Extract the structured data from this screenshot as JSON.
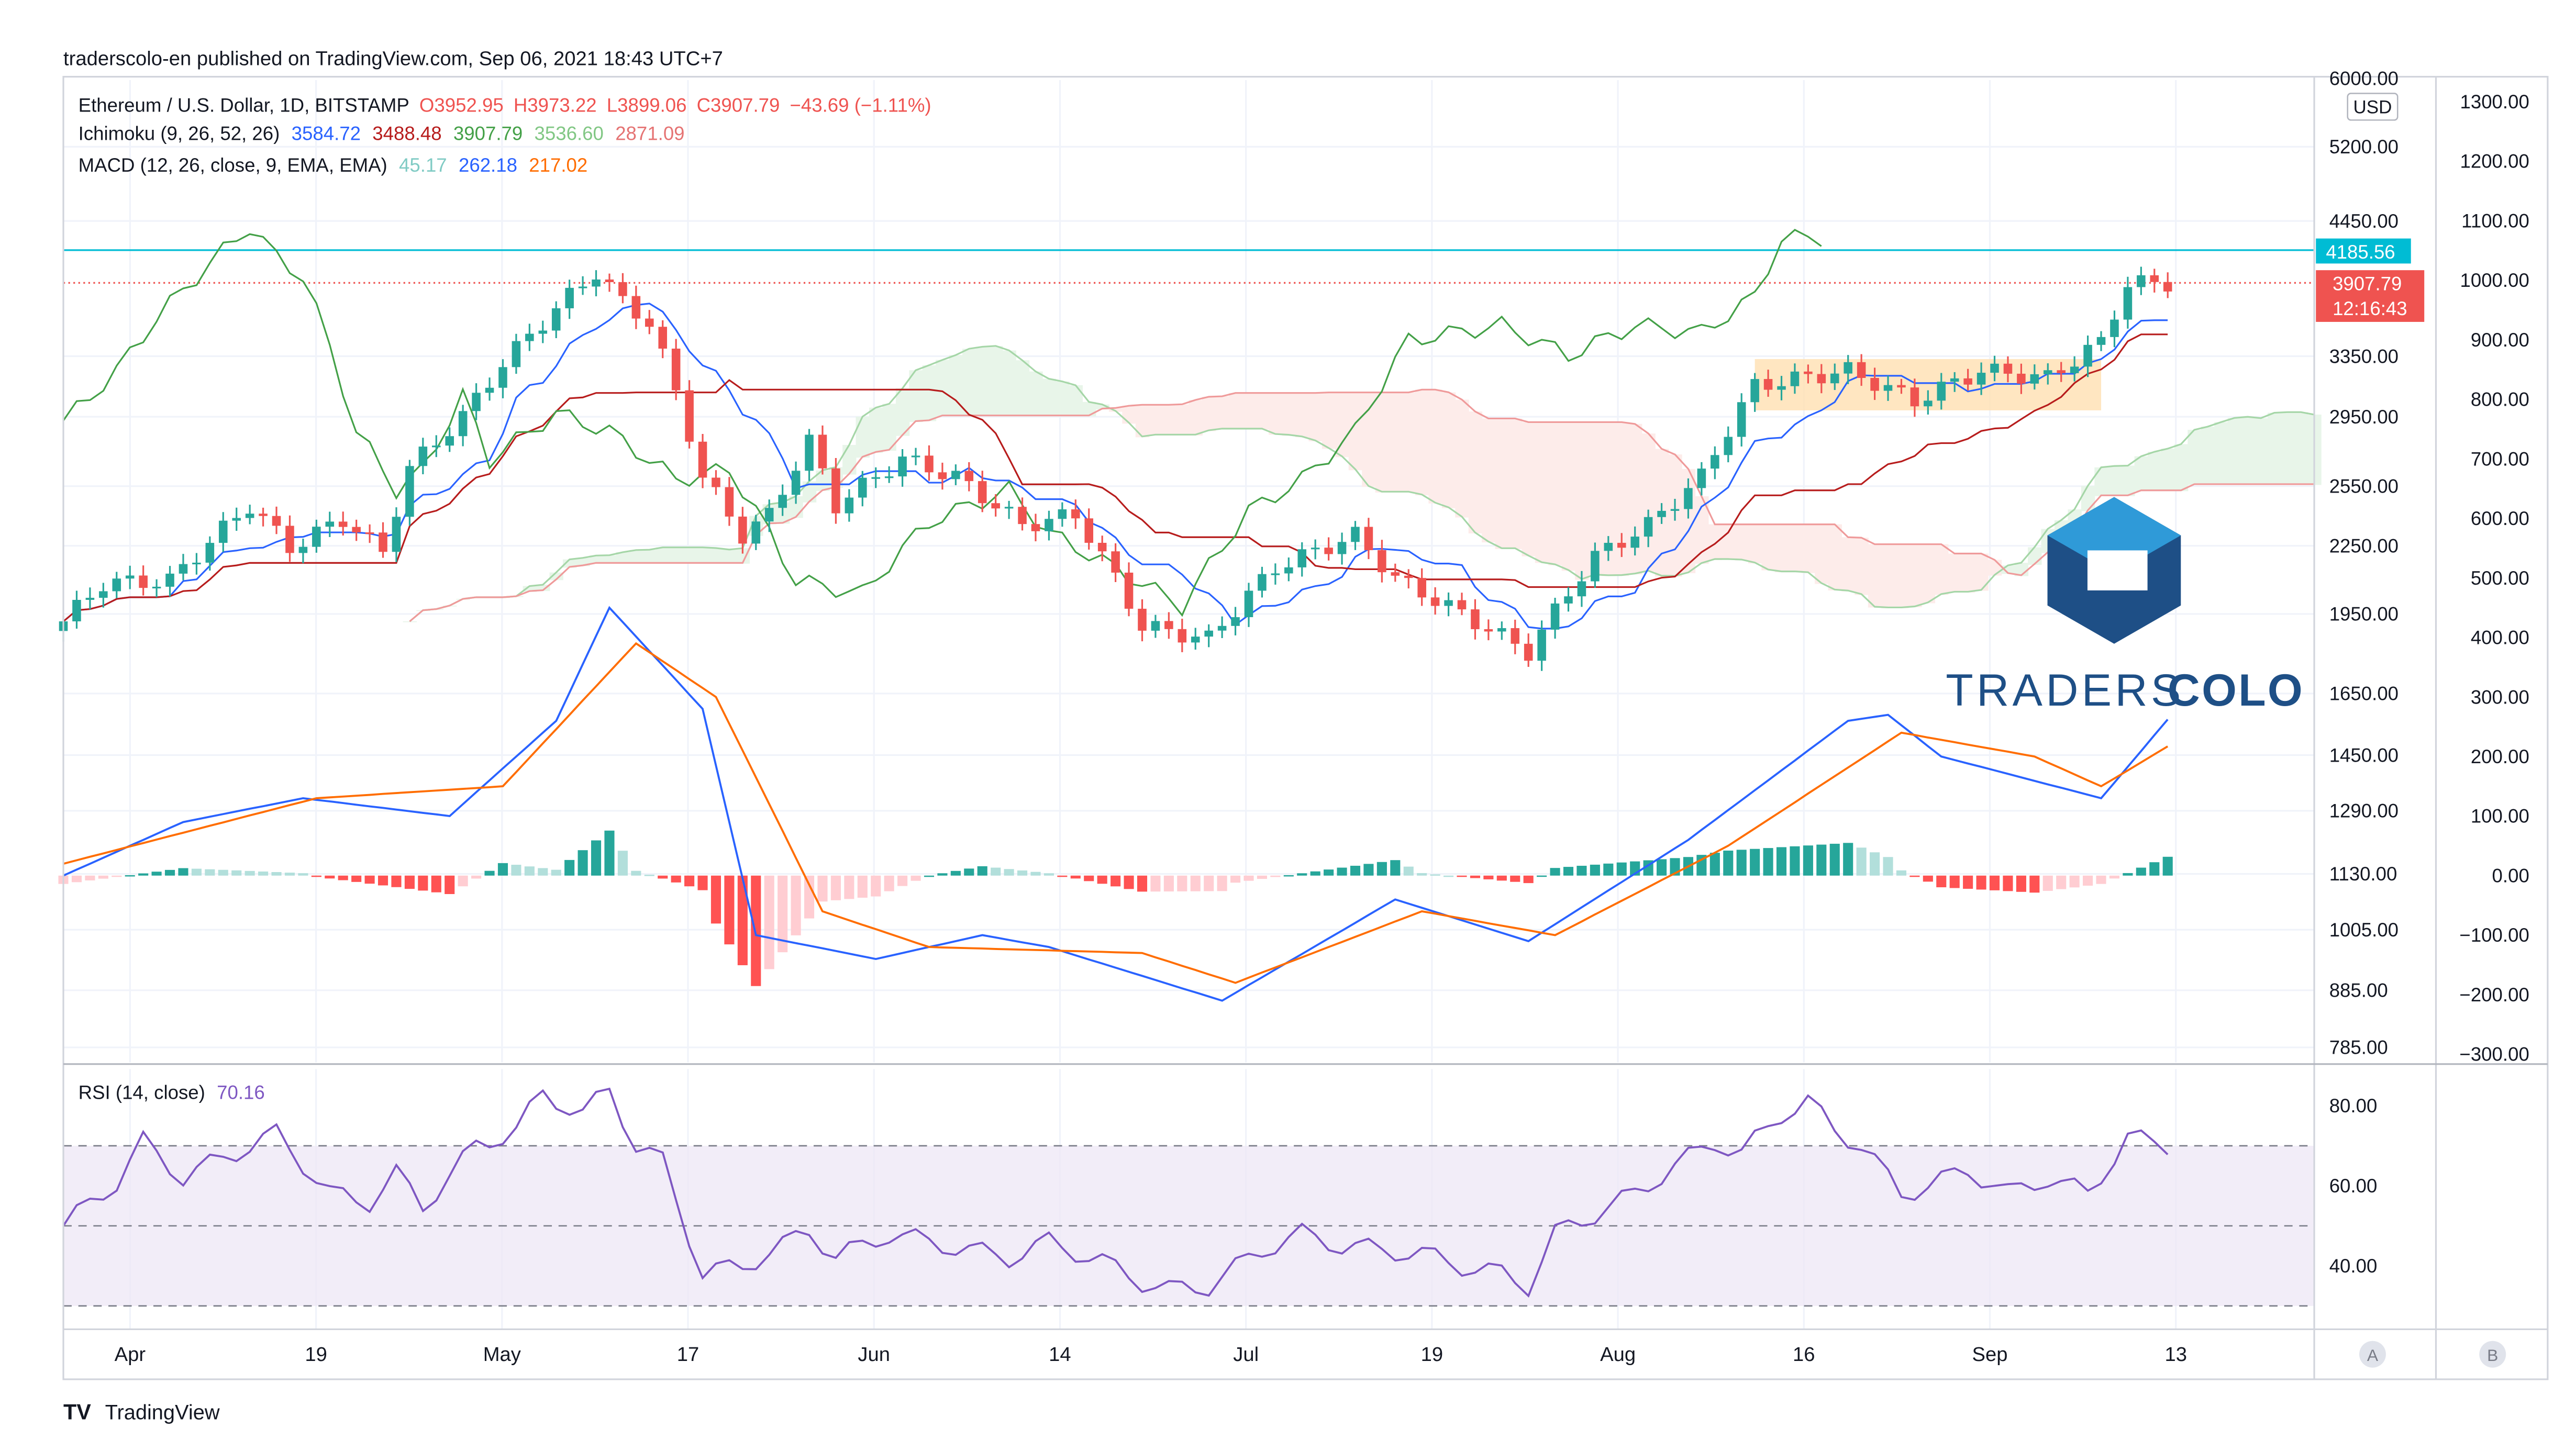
{
  "header": {
    "published": "traderscolo-en published on TradingView.com, Sep 06, 2021 18:43 UTC+7"
  },
  "legend": {
    "symbol": "Ethereum / U.S. Dollar, 1D, BITSTAMP",
    "open": "O3952.95",
    "high": "H3973.22",
    "low": "L3899.06",
    "close": "C3907.79",
    "change": "−43.69 (−1.11%)",
    "ichimoku_name": "Ichimoku (9, 26, 52, 26)",
    "ichi_v1": "3584.72",
    "ichi_v2": "3488.48",
    "ichi_v3": "3907.79",
    "ichi_v4": "3536.60",
    "ichi_v5": "2871.09",
    "macd_name": "MACD (12, 26, close, 9, EMA, EMA)",
    "macd_v1": "45.17",
    "macd_v2": "262.18",
    "macd_v3": "217.02",
    "rsi_name": "RSI (14, close)",
    "rsi_value": "70.16"
  },
  "price_axis": {
    "currency": "USD",
    "top_partial": "6000.00",
    "resistance_label": "4185.56",
    "last_price": "3907.79",
    "countdown": "12:16:43"
  },
  "logo": {
    "word1": "TRADERS",
    "word2": "COLO"
  },
  "footer": {
    "brand": "TradingView"
  },
  "axis_buttons": {
    "a": "A",
    "b": "B"
  },
  "colors": {
    "up": "#26a69a",
    "down": "#ef5350",
    "tenkan": "#2962ff",
    "kijun": "#b71c1c",
    "chikou": "#43a047",
    "span_a": "#a5d6a7",
    "span_b": "#ef9a9a",
    "macd": "#2962ff",
    "signal": "#ff6d00",
    "rsi": "#7e57c2",
    "resistance": "#00bcd4",
    "logo_dark": "#1e4f86",
    "logo_light": "#2f9ad8"
  },
  "chart_data": {
    "type": "candlestick",
    "x_ticks": [
      "Apr",
      "19",
      "May",
      "17",
      "Jun",
      "14",
      "Jul",
      "19",
      "Aug",
      "16",
      "Sep",
      "13"
    ],
    "x_range": [
      "2021-04-01",
      "2021-09-17"
    ],
    "price": {
      "scale": "log",
      "tick_labels": [
        "5200.00",
        "4450.00",
        "3350.00",
        "2950.00",
        "2550.00",
        "2250.00",
        "1950.00",
        "1650.00",
        "1450.00",
        "1290.00",
        "1130.00",
        "1005.00",
        "885.00",
        "785.00"
      ],
      "tick_values": [
        5200,
        4450,
        3350,
        2950,
        2550,
        2250,
        1950,
        1650,
        1450,
        1290,
        1130,
        1005,
        885,
        785
      ],
      "last": 3907.79,
      "resistance": 4185.56,
      "consolidation_box": {
        "from": "2021-08-06",
        "to": "2021-09-01",
        "low": 2990,
        "high": 3330
      },
      "keypoints": [
        [
          "2021-04-01",
          1920
        ],
        [
          "2021-04-04",
          2080
        ],
        [
          "2021-04-09",
          2090
        ],
        [
          "2021-04-15",
          2450
        ],
        [
          "2021-04-18",
          2240
        ],
        [
          "2021-04-22",
          2380
        ],
        [
          "2021-04-25",
          2220
        ],
        [
          "2021-04-27",
          2650
        ],
        [
          "2021-05-01",
          2950
        ],
        [
          "2021-05-04",
          3300
        ],
        [
          "2021-05-06",
          3500
        ],
        [
          "2021-05-11",
          4000
        ],
        [
          "2021-05-13",
          3750
        ],
        [
          "2021-05-15",
          3600
        ],
        [
          "2021-05-19",
          2600
        ],
        [
          "2021-05-22",
          2300
        ],
        [
          "2021-05-24",
          2400
        ],
        [
          "2021-05-27",
          2800
        ],
        [
          "2021-05-29",
          2450
        ],
        [
          "2021-06-03",
          2700
        ],
        [
          "2021-06-07",
          2600
        ],
        [
          "2021-06-12",
          2350
        ],
        [
          "2021-06-16",
          2400
        ],
        [
          "2021-06-21",
          1900
        ],
        [
          "2021-06-26",
          1850
        ],
        [
          "2021-07-01",
          2150
        ],
        [
          "2021-07-07",
          2300
        ],
        [
          "2021-07-10",
          2100
        ],
        [
          "2021-07-15",
          1950
        ],
        [
          "2021-07-20",
          1800
        ],
        [
          "2021-07-25",
          2200
        ],
        [
          "2021-07-29",
          2350
        ],
        [
          "2021-08-02",
          2600
        ],
        [
          "2021-08-06",
          3150
        ],
        [
          "2021-08-13",
          3250
        ],
        [
          "2021-08-18",
          3050
        ],
        [
          "2021-08-23",
          3250
        ],
        [
          "2021-08-28",
          3200
        ],
        [
          "2021-09-01",
          3450
        ],
        [
          "2021-09-03",
          3900
        ],
        [
          "2021-09-06",
          3907.79
        ]
      ]
    },
    "macd": {
      "tick_labels": [
        "1300.00",
        "1200.00",
        "1100.00",
        "1000.00",
        "900.00",
        "800.00",
        "700.00",
        "600.00",
        "500.00",
        "400.00",
        "300.00",
        "200.00",
        "100.00",
        "0.00",
        "−100.00",
        "−200.00",
        "−300.00"
      ],
      "tick_values": [
        1300,
        1200,
        1100,
        1000,
        900,
        800,
        700,
        600,
        500,
        400,
        300,
        200,
        100,
        0,
        -100,
        -200,
        -300
      ],
      "macd_points": [
        [
          "2021-04-01",
          0
        ],
        [
          "2021-04-10",
          90
        ],
        [
          "2021-04-19",
          130
        ],
        [
          "2021-04-30",
          100
        ],
        [
          "2021-05-08",
          260
        ],
        [
          "2021-05-12",
          450
        ],
        [
          "2021-05-19",
          280
        ],
        [
          "2021-05-23",
          -100
        ],
        [
          "2021-06-01",
          -140
        ],
        [
          "2021-06-09",
          -100
        ],
        [
          "2021-06-14",
          -120
        ],
        [
          "2021-06-27",
          -210
        ],
        [
          "2021-07-10",
          -40
        ],
        [
          "2021-07-20",
          -110
        ],
        [
          "2021-08-01",
          60
        ],
        [
          "2021-08-13",
          260
        ],
        [
          "2021-08-16",
          270
        ],
        [
          "2021-08-20",
          200
        ],
        [
          "2021-09-01",
          130
        ],
        [
          "2021-09-06",
          262.18
        ]
      ],
      "signal_points": [
        [
          "2021-04-01",
          20
        ],
        [
          "2021-04-20",
          130
        ],
        [
          "2021-05-04",
          150
        ],
        [
          "2021-05-14",
          390
        ],
        [
          "2021-05-20",
          300
        ],
        [
          "2021-05-28",
          -60
        ],
        [
          "2021-06-05",
          -120
        ],
        [
          "2021-06-21",
          -130
        ],
        [
          "2021-06-28",
          -180
        ],
        [
          "2021-07-12",
          -60
        ],
        [
          "2021-07-22",
          -100
        ],
        [
          "2021-08-04",
          50
        ],
        [
          "2021-08-17",
          240
        ],
        [
          "2021-08-27",
          200
        ],
        [
          "2021-09-01",
          150
        ],
        [
          "2021-09-06",
          217.02
        ]
      ],
      "histogram_last": 45.17
    },
    "rsi": {
      "tick_labels": [
        "80.00",
        "60.00",
        "40.00"
      ],
      "tick_values": [
        80,
        60,
        40
      ],
      "bands": [
        70,
        50,
        30
      ],
      "last": 70.16,
      "points": [
        [
          "2021-04-01",
          50
        ],
        [
          "2021-04-05",
          61
        ],
        [
          "2021-04-07",
          71
        ],
        [
          "2021-04-10",
          62
        ],
        [
          "2021-04-13",
          67
        ],
        [
          "2021-04-17",
          73
        ],
        [
          "2021-04-21",
          58
        ],
        [
          "2021-04-24",
          56
        ],
        [
          "2021-04-26",
          63
        ],
        [
          "2021-04-28",
          55
        ],
        [
          "2021-05-02",
          70
        ],
        [
          "2021-05-05",
          74
        ],
        [
          "2021-05-07",
          83
        ],
        [
          "2021-05-10",
          78
        ],
        [
          "2021-05-12",
          84
        ],
        [
          "2021-05-14",
          70
        ],
        [
          "2021-05-16",
          66
        ],
        [
          "2021-05-19",
          38
        ],
        [
          "2021-05-22",
          40
        ],
        [
          "2021-05-25",
          45
        ],
        [
          "2021-05-27",
          49
        ],
        [
          "2021-05-29",
          42
        ],
        [
          "2021-06-02",
          48
        ],
        [
          "2021-06-05",
          46
        ],
        [
          "2021-06-08",
          44
        ],
        [
          "2021-06-11",
          42
        ],
        [
          "2021-06-14",
          46
        ],
        [
          "2021-06-18",
          41
        ],
        [
          "2021-06-21",
          36
        ],
        [
          "2021-06-23",
          34
        ],
        [
          "2021-06-26",
          35
        ],
        [
          "2021-06-30",
          44
        ],
        [
          "2021-07-03",
          48
        ],
        [
          "2021-07-06",
          45
        ],
        [
          "2021-07-09",
          44
        ],
        [
          "2021-07-12",
          43
        ],
        [
          "2021-07-15",
          40
        ],
        [
          "2021-07-18",
          38
        ],
        [
          "2021-07-20",
          35
        ],
        [
          "2021-07-22",
          48
        ],
        [
          "2021-07-25",
          53
        ],
        [
          "2021-07-28",
          58
        ],
        [
          "2021-07-31",
          65
        ],
        [
          "2021-08-03",
          71
        ],
        [
          "2021-08-05",
          68
        ],
        [
          "2021-08-08",
          78
        ],
        [
          "2021-08-10",
          81
        ],
        [
          "2021-08-12",
          74
        ],
        [
          "2021-08-14",
          70
        ],
        [
          "2021-08-17",
          58
        ],
        [
          "2021-08-19",
          60
        ],
        [
          "2021-08-22",
          64
        ],
        [
          "2021-08-25",
          58
        ],
        [
          "2021-08-28",
          62
        ],
        [
          "2021-08-31",
          58
        ],
        [
          "2021-09-03",
          72
        ],
        [
          "2021-09-06",
          70.16
        ]
      ]
    }
  }
}
